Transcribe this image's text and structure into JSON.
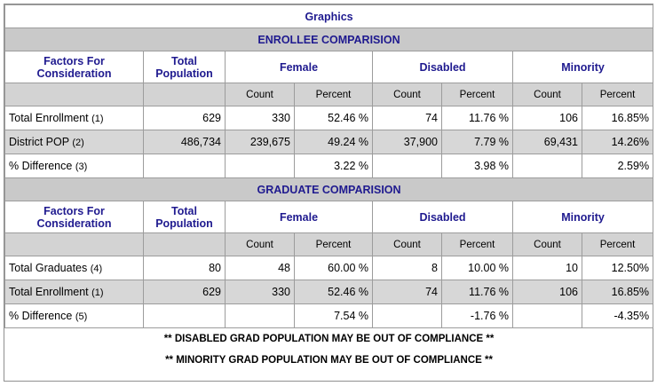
{
  "title": "Graphics",
  "enrollee": {
    "section_title": "ENROLLEE COMPARISION",
    "headers": {
      "factors": "Factors For Consideration",
      "total": "Total Population",
      "female": "Female",
      "disabled": "Disabled",
      "minority": "Minority"
    },
    "sub": {
      "count": "Count",
      "percent": "Percent"
    },
    "rows": [
      {
        "label": "Total Enrollment",
        "fn": "(1)",
        "total": "629",
        "f_count": "330",
        "f_pct": "52.46 %",
        "d_count": "74",
        "d_pct": "11.76 %",
        "m_count": "106",
        "m_pct": "16.85%"
      },
      {
        "label": "District POP",
        "fn": "(2)",
        "total": "486,734",
        "f_count": "239,675",
        "f_pct": "49.24 %",
        "d_count": "37,900",
        "d_pct": "7.79 %",
        "m_count": "69,431",
        "m_pct": "14.26%"
      },
      {
        "label": "% Difference",
        "fn": "(3)",
        "total": "",
        "f_count": "",
        "f_pct": "3.22 %",
        "d_count": "",
        "d_pct": "3.98 %",
        "m_count": "",
        "m_pct": "2.59%"
      }
    ]
  },
  "graduate": {
    "section_title": "GRADUATE COMPARISION",
    "headers": {
      "factors": "Factors For Consideration",
      "total": "Total Population",
      "female": "Female",
      "disabled": "Disabled",
      "minority": "Minority"
    },
    "sub": {
      "count": "Count",
      "percent": "Percent"
    },
    "rows": [
      {
        "label": "Total Graduates",
        "fn": "(4)",
        "total": "80",
        "f_count": "48",
        "f_pct": "60.00 %",
        "d_count": "8",
        "d_pct": "10.00 %",
        "m_count": "10",
        "m_pct": "12.50%"
      },
      {
        "label": "Total Enrollment",
        "fn": "(1)",
        "total": "629",
        "f_count": "330",
        "f_pct": "52.46 %",
        "d_count": "74",
        "d_pct": "11.76 %",
        "m_count": "106",
        "m_pct": "16.85%"
      },
      {
        "label": "% Difference",
        "fn": "(5)",
        "total": "",
        "f_count": "",
        "f_pct": "7.54 %",
        "d_count": "",
        "d_pct": "-1.76 %",
        "m_count": "",
        "m_pct": "-4.35%"
      }
    ]
  },
  "notes": [
    "** DISABLED GRAD POPULATION MAY BE OUT OF COMPLIANCE **",
    "** MINORITY GRAD POPULATION MAY BE OUT OF COMPLIANCE **"
  ]
}
